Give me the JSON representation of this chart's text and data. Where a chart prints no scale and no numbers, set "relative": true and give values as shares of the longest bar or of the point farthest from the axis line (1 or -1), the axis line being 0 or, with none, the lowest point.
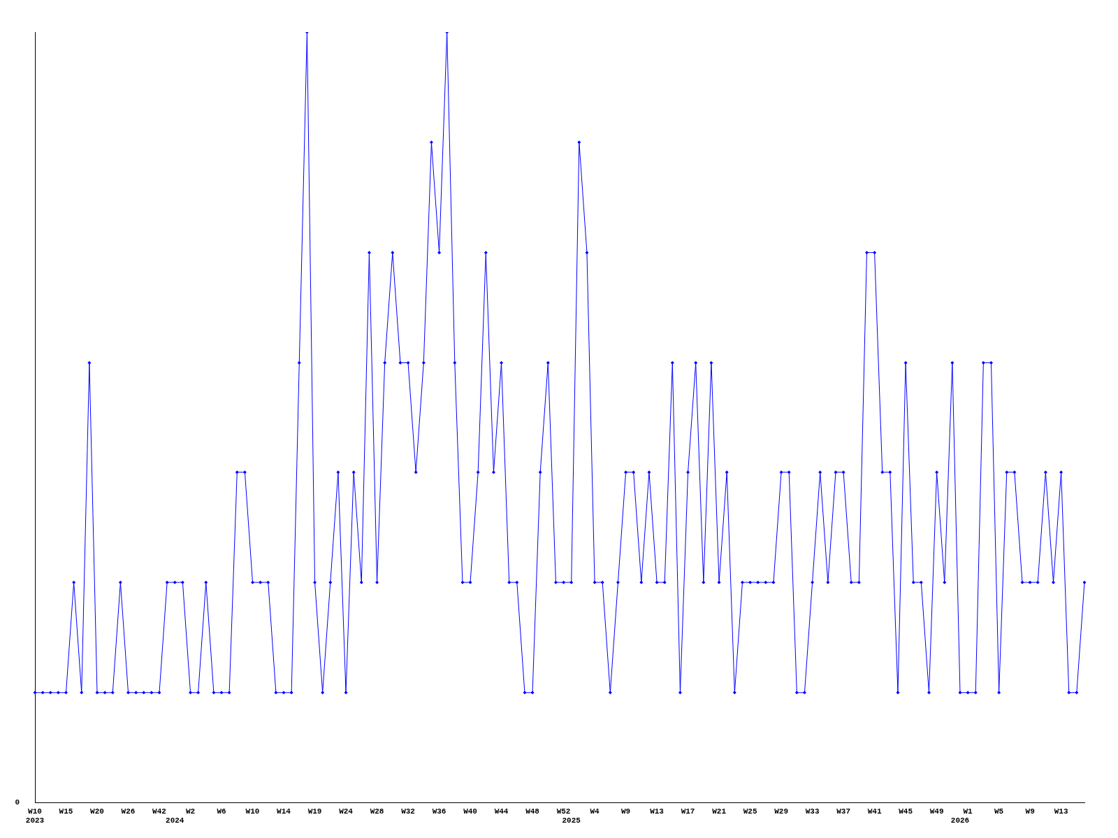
{
  "chart_data": {
    "type": "line",
    "relative": true,
    "marker": "diamond",
    "line_style": "solid",
    "grid": false,
    "legend": false,
    "categories": [
      "W10\n2023",
      null,
      null,
      null,
      "W15",
      null,
      null,
      null,
      "W20",
      null,
      null,
      null,
      "W26",
      null,
      null,
      null,
      "W42",
      null,
      "\n2024",
      null,
      "W2",
      null,
      null,
      null,
      "W6",
      null,
      null,
      null,
      "W10",
      null,
      null,
      null,
      "W14",
      null,
      null,
      null,
      "W19",
      null,
      null,
      null,
      "W24",
      null,
      null,
      null,
      "W28",
      null,
      null,
      null,
      "W32",
      null,
      null,
      null,
      "W36",
      null,
      null,
      null,
      "W40",
      null,
      null,
      null,
      "W44",
      null,
      null,
      null,
      "W48",
      null,
      null,
      null,
      "W52",
      "\n2025",
      null,
      null,
      "W4",
      null,
      null,
      null,
      "W9",
      null,
      null,
      null,
      "W13",
      null,
      null,
      null,
      "W17",
      null,
      null,
      null,
      "W21",
      null,
      null,
      null,
      "W25",
      null,
      null,
      null,
      "W29",
      null,
      null,
      null,
      "W33",
      null,
      null,
      null,
      "W37",
      null,
      null,
      null,
      "W41",
      null,
      null,
      null,
      "W45",
      null,
      null,
      null,
      "W49",
      null,
      null,
      "\n2026",
      "W1",
      null,
      null,
      null,
      "W5",
      null,
      null,
      null,
      "W9",
      null,
      null,
      null,
      "W13",
      null,
      null,
      null
    ],
    "series": [
      {
        "color": "#0000ff",
        "values": [
          0.143,
          0.143,
          0.143,
          0.143,
          0.143,
          0.286,
          0.143,
          0.571,
          0.143,
          0.143,
          0.143,
          0.286,
          0.143,
          0.143,
          0.143,
          0.143,
          0.143,
          0.286,
          0.286,
          0.286,
          0.143,
          0.143,
          0.286,
          0.143,
          0.143,
          0.143,
          0.429,
          0.429,
          0.286,
          0.286,
          0.286,
          0.143,
          0.143,
          0.143,
          0.571,
          1,
          0.286,
          0.143,
          0.286,
          0.429,
          0.143,
          0.429,
          0.286,
          0.714,
          0.286,
          0.571,
          0.714,
          0.571,
          0.571,
          0.429,
          0.571,
          0.857,
          0.714,
          1,
          0.571,
          0.286,
          0.286,
          0.429,
          0.714,
          0.429,
          0.571,
          0.286,
          0.286,
          0.143,
          0.143,
          0.429,
          0.571,
          0.286,
          0.286,
          0.286,
          0.857,
          0.714,
          0.286,
          0.286,
          0.143,
          0.286,
          0.429,
          0.429,
          0.286,
          0.429,
          0.286,
          0.286,
          0.571,
          0.143,
          0.429,
          0.571,
          0.286,
          0.571,
          0.286,
          0.429,
          0.143,
          0.286,
          0.286,
          0.286,
          0.286,
          0.286,
          0.429,
          0.429,
          0.143,
          0.143,
          0.286,
          0.429,
          0.286,
          0.429,
          0.429,
          0.286,
          0.286,
          0.714,
          0.714,
          0.429,
          0.429,
          0.143,
          0.571,
          0.286,
          0.286,
          0.143,
          0.429,
          0.286,
          0.571,
          0.143,
          0.143,
          0.143,
          0.571,
          0.571,
          0.143,
          0.429,
          0.429,
          0.286,
          0.286,
          0.286,
          0.429,
          0.286,
          0.429,
          0.143,
          0.143,
          0.286
        ]
      }
    ],
    "annotations": [
      "0"
    ]
  }
}
